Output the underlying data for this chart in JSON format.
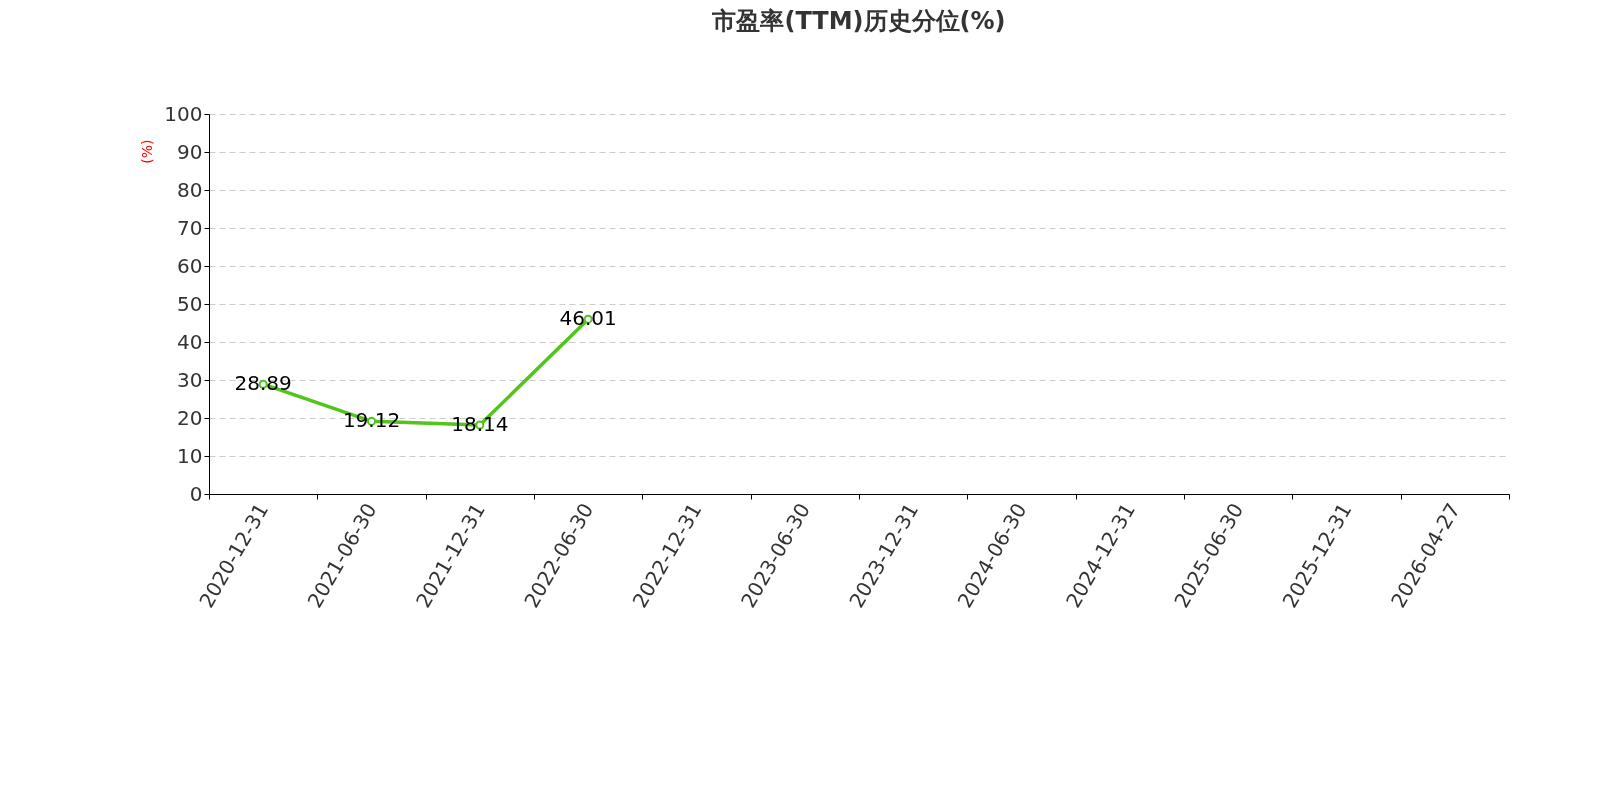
{
  "chart_data": {
    "type": "line",
    "title": "市盈率(TTM)历史分位(%)",
    "ylabel": "(%)",
    "categories": [
      "2020-12-31",
      "2021-06-30",
      "2021-12-31",
      "2022-06-30",
      "2022-12-31",
      "2023-06-30",
      "2023-12-31",
      "2024-06-30",
      "2024-12-31",
      "2025-06-30",
      "2025-12-31",
      "2026-04-27"
    ],
    "series": [
      {
        "color": "#52c41a",
        "values": [
          28.89,
          19.12,
          18.14,
          46.01,
          null,
          null,
          null,
          null,
          null,
          null,
          null,
          null
        ]
      }
    ],
    "ylim": [
      0,
      100
    ],
    "yticks": [
      0,
      10,
      20,
      30,
      40,
      50,
      60,
      70,
      80,
      90,
      100
    ],
    "grid": "y",
    "marker": "circle",
    "line_style": "solid",
    "data_labels": true
  }
}
